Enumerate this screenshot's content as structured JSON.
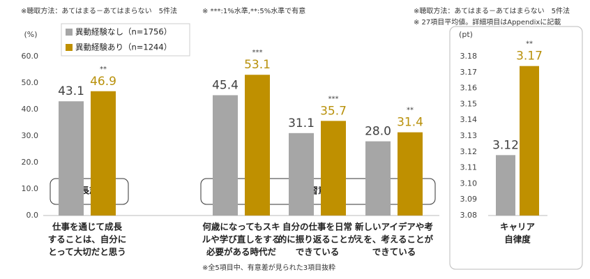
{
  "chart_data": [
    {
      "type": "bar",
      "y_unit": "(%)",
      "notes": [
        "※聴取方法：あてはまる－あてはまらない　5件法",
        "※ ***:1%水準,**:5%水準で有意",
        "※全5項目中、有意差が見られた3項目抜粋"
      ],
      "categories": [
        [
          "仕事を通じて成長",
          "することは、自分に",
          "とって大切だと思う"
        ],
        [
          "何歳になってもスキ",
          "ルや学び直しをする",
          "必要がある時代だ"
        ],
        [
          "自分の仕事を日常",
          "的に振り返ることが",
          "できている"
        ],
        [
          "新しいアイデアや考",
          "えを、考えることが",
          "できている"
        ]
      ],
      "groups": [
        "成長志向",
        "学習意欲"
      ],
      "series": [
        {
          "name": "異動経験なし（n=1756）",
          "color": "#a6a6a6",
          "values": [
            43.1,
            45.4,
            31.1,
            28.0
          ],
          "value_labels": [
            "43.1",
            "45.4",
            "31.1",
            "28.0"
          ]
        },
        {
          "name": "異動経験あり（n=1244）",
          "color": "#bf9000",
          "values": [
            46.9,
            53.1,
            35.7,
            31.4
          ],
          "significance": [
            "**",
            "***",
            "***",
            "**"
          ]
        }
      ],
      "ylim": [
        0,
        60
      ],
      "yticks": [
        {
          "value": 0,
          "label": "0.0"
        },
        {
          "value": 10,
          "label": "10.0"
        },
        {
          "value": 20,
          "label": "20.0"
        },
        {
          "value": 30,
          "label": "30.0"
        },
        {
          "value": 40,
          "label": "40.0"
        },
        {
          "value": 50,
          "label": "50.0"
        },
        {
          "value": 60,
          "label": "60.0"
        }
      ],
      "legend": "top-left"
    },
    {
      "type": "bar",
      "y_unit": "(pt)",
      "notes": [
        "※聴取方法：あてはまる－あてはまらない　5件法",
        "※ 27項目平均値。詳細項目はAppendixに記載"
      ],
      "categories": [
        [
          "キャリア",
          "自律度"
        ]
      ],
      "series": [
        {
          "color": "#a6a6a6",
          "values": [
            3.118
          ],
          "value_labels": [
            "3.12"
          ]
        },
        {
          "color": "#bf9000",
          "values": [
            3.174
          ],
          "value_labels": [
            "3.17"
          ],
          "significance": [
            "**"
          ]
        }
      ],
      "ylim": [
        3.08,
        3.18
      ],
      "yticks": [
        3.08,
        3.09,
        {
          "value": 3.1,
          "label": "3.10"
        },
        3.11,
        3.12,
        3.13,
        3.14,
        3.15,
        3.16,
        3.17,
        3.18
      ],
      "legend": false
    }
  ]
}
